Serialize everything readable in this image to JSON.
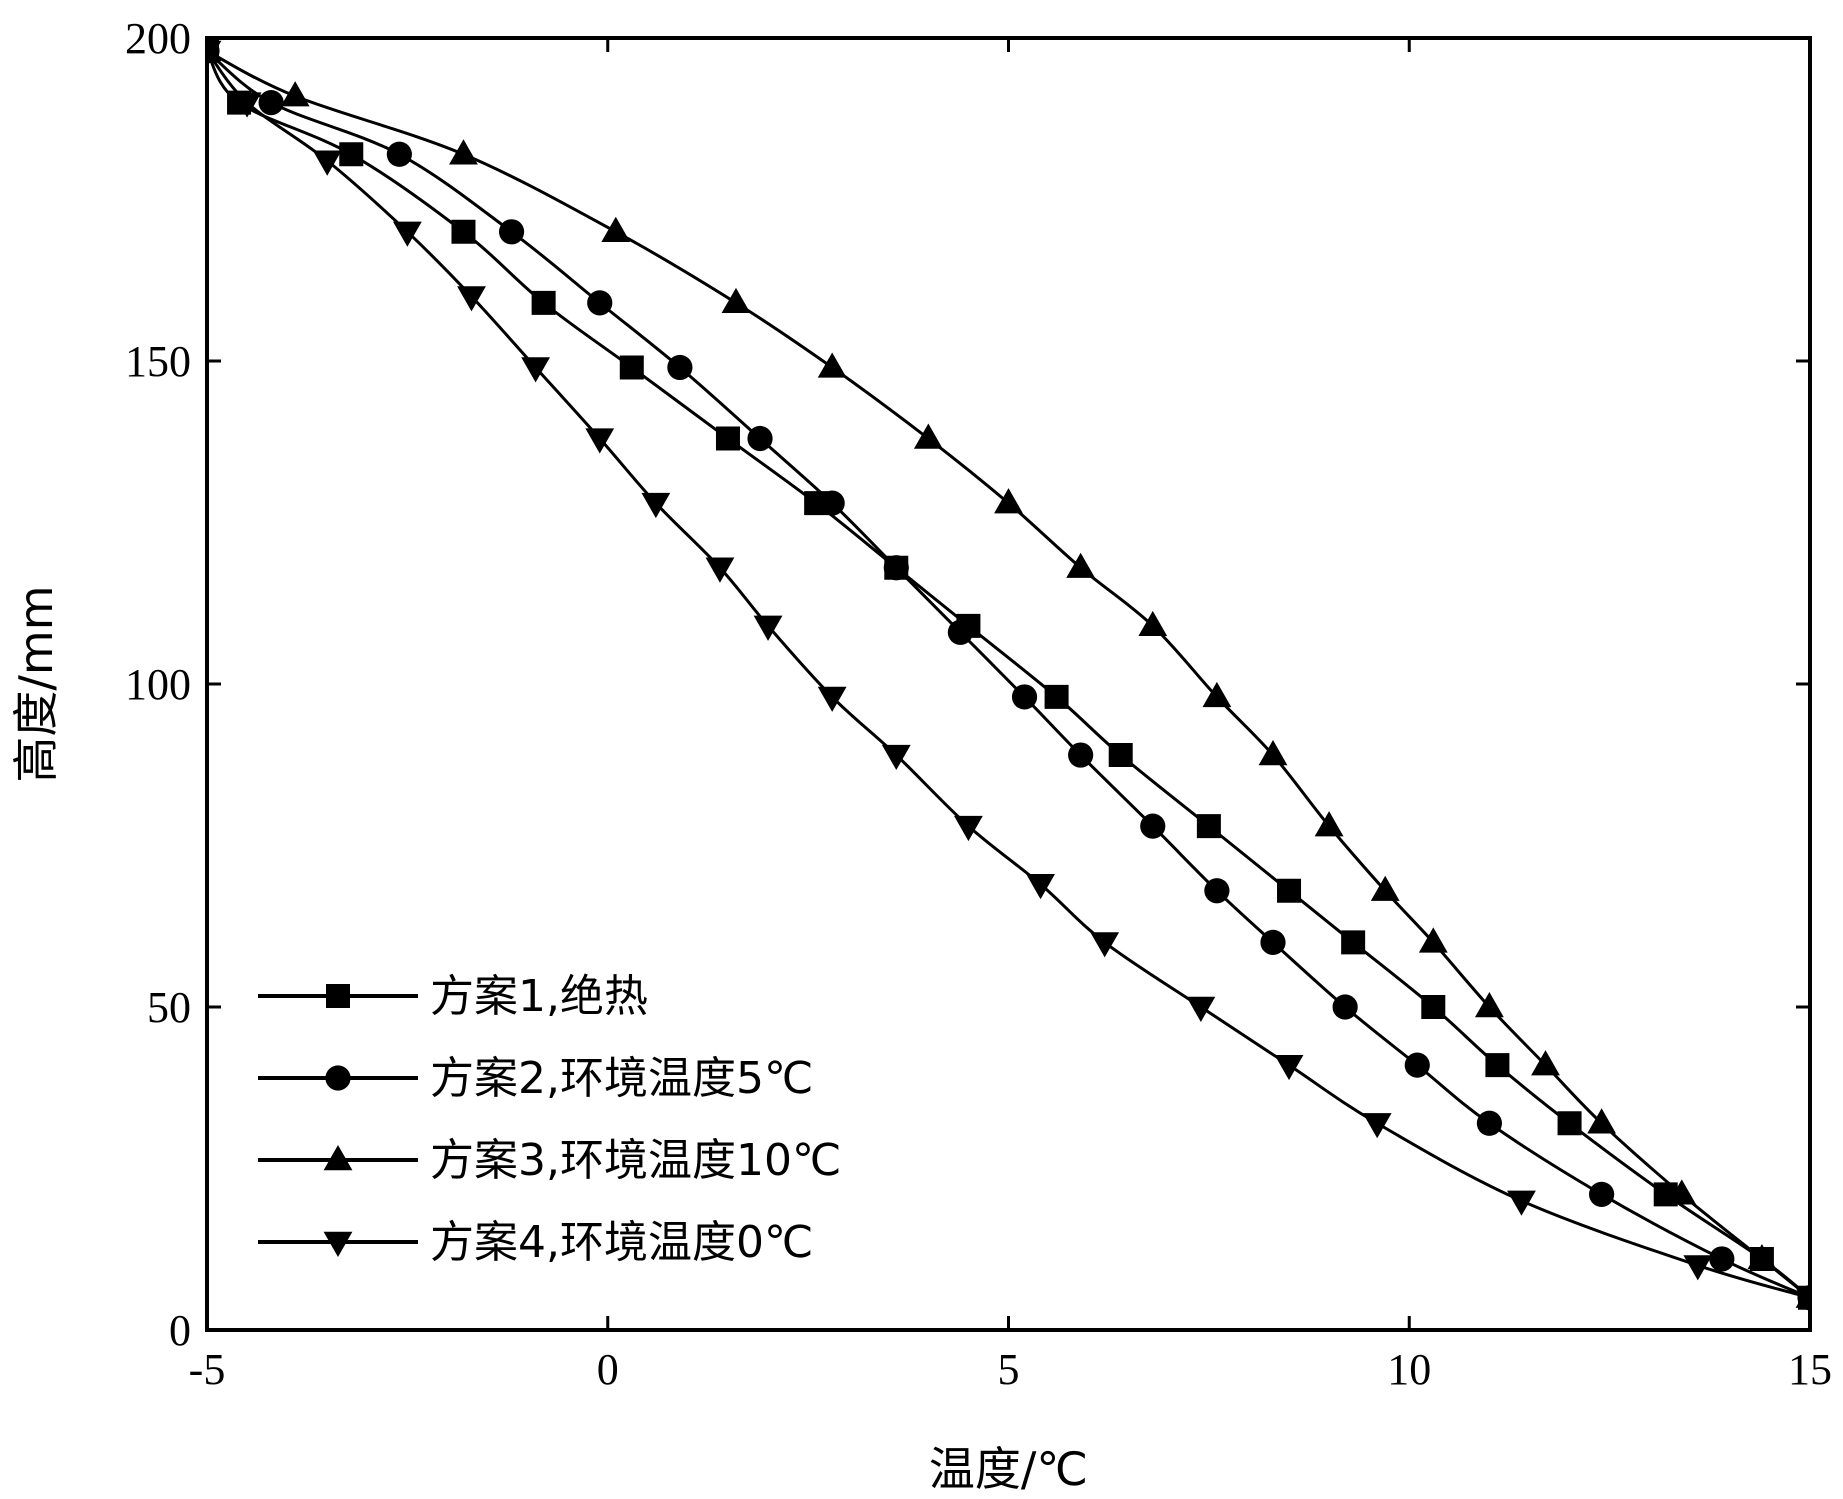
{
  "chart_data": {
    "type": "line",
    "title": "",
    "xlabel": "温度/℃",
    "ylabel": "高度/mm",
    "xlim": [
      -5,
      15
    ],
    "ylim": [
      0,
      200
    ],
    "xticks": [
      -5,
      0,
      5,
      10,
      15
    ],
    "yticks": [
      0,
      50,
      100,
      150,
      200
    ],
    "grid": false,
    "legend_position": "bottom-left",
    "series": [
      {
        "name": "方案1,绝热",
        "marker": "square",
        "x": [
          -5.0,
          -4.6,
          -3.2,
          -1.8,
          -0.8,
          0.3,
          1.5,
          2.6,
          3.6,
          4.5,
          5.6,
          6.4,
          7.5,
          8.5,
          9.3,
          10.3,
          11.1,
          12.0,
          13.2,
          14.4,
          15.0
        ],
        "y": [
          198,
          190,
          182,
          170,
          159,
          149,
          138,
          128,
          118,
          109,
          98,
          89,
          78,
          68,
          60,
          50,
          41,
          32,
          21,
          11,
          5
        ]
      },
      {
        "name": "方案2,环境温度5℃",
        "marker": "circle",
        "x": [
          -5.0,
          -4.2,
          -2.6,
          -1.2,
          -0.1,
          0.9,
          1.9,
          2.8,
          3.6,
          4.4,
          5.2,
          5.9,
          6.8,
          7.6,
          8.3,
          9.2,
          10.1,
          11.0,
          12.4,
          13.9,
          15.0
        ],
        "y": [
          198,
          190,
          182,
          170,
          159,
          149,
          138,
          128,
          118,
          108,
          98,
          89,
          78,
          68,
          60,
          50,
          41,
          32,
          21,
          11,
          5
        ]
      },
      {
        "name": "方案3,环境温度10℃",
        "marker": "triangle-up",
        "x": [
          -5.0,
          -3.9,
          -1.8,
          0.1,
          1.6,
          2.8,
          4.0,
          5.0,
          5.9,
          6.8,
          7.6,
          8.3,
          9.0,
          9.7,
          10.3,
          11.0,
          11.7,
          12.4,
          13.4,
          14.4,
          15.0
        ],
        "y": [
          198,
          191,
          182,
          170,
          159,
          149,
          138,
          128,
          118,
          109,
          98,
          89,
          78,
          68,
          60,
          50,
          41,
          32,
          21,
          11,
          5
        ]
      },
      {
        "name": "方案4,环境温度0℃",
        "marker": "triangle-down",
        "x": [
          -5.0,
          -4.5,
          -3.5,
          -2.5,
          -1.7,
          -0.9,
          -0.1,
          0.6,
          1.4,
          2.0,
          2.8,
          3.6,
          4.5,
          5.4,
          6.2,
          7.4,
          8.5,
          9.6,
          11.4,
          13.6,
          15.0
        ],
        "y": [
          198,
          190,
          181,
          170,
          160,
          149,
          138,
          128,
          118,
          109,
          98,
          89,
          78,
          69,
          60,
          50,
          41,
          32,
          20,
          10,
          5
        ]
      }
    ]
  }
}
